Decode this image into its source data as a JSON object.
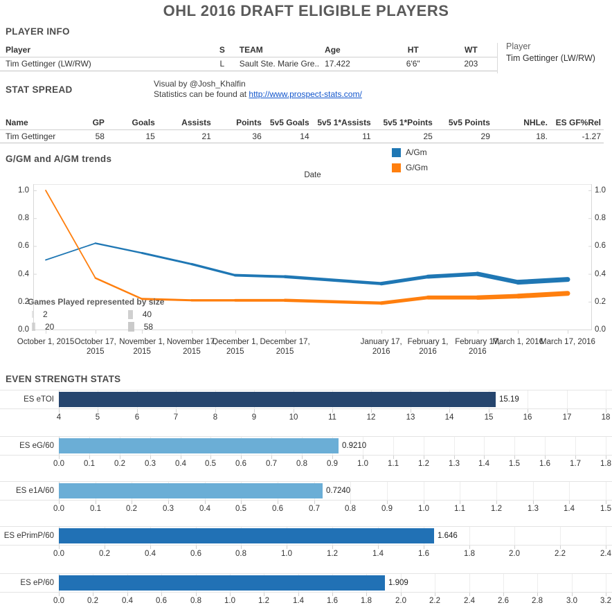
{
  "title": "OHL 2016 DRAFT ELIGIBLE PLAYERS",
  "player_info": {
    "heading": "PLAYER INFO",
    "columns": [
      "Player",
      "S",
      "TEAM",
      "Age",
      "HT",
      "WT"
    ],
    "row": [
      "Tim Gettinger (LW/RW)",
      "L",
      "Sault Ste. Marie Gre..",
      "17.422",
      "6'6\"",
      "203"
    ],
    "side_label": "Player",
    "side_value": "Tim Gettinger (LW/RW)"
  },
  "stat_spread": {
    "heading": "STAT SPREAD",
    "credit_line1": "Visual by @Josh_Khalfin",
    "credit_line2_prefix": "Statistics can be found at ",
    "credit_link": "http://www.prospect-stats.com/",
    "columns": [
      "Name",
      "GP",
      "Goals",
      "Assists",
      "Points",
      "5v5 Goals",
      "5v5 1*Assists",
      "5v5 1*Points",
      "5v5 Points",
      "NHLe.",
      "ES GF%Rel"
    ],
    "row": [
      "Tim Gettinger",
      "58",
      "15",
      "21",
      "36",
      "14",
      "11",
      "25",
      "29",
      "18.",
      "-1.27"
    ]
  },
  "trends": {
    "heading": "G/GM and A/GM trends",
    "legend": [
      {
        "label": "A/Gm",
        "color": "#1f77b4"
      },
      {
        "label": "G/Gm",
        "color": "#ff7f0e"
      }
    ]
  },
  "even_strength": {
    "heading": "EVEN STRENGTH STATS"
  },
  "chart_data": [
    {
      "type": "line",
      "title": "G/GM and A/GM trends",
      "xlabel": "Date",
      "ylabel": "",
      "ylim": [
        0.0,
        1.0
      ],
      "yticks": [
        0.0,
        0.2,
        0.4,
        0.6,
        0.8,
        1.0
      ],
      "grid": false,
      "legend_position": "top-right",
      "x": [
        "October 1, 2015",
        "October 17, 2015",
        "November 1, 2015",
        "November 17, 2015",
        "December 1, 2015",
        "December 17, 2015",
        "January 17, 2016",
        "February 1, 2016",
        "February 17, 2016",
        "March 1, 2016",
        "March 17, 2016"
      ],
      "x_day_offsets": [
        0,
        16,
        31,
        47,
        61,
        77,
        108,
        123,
        139,
        152,
        168
      ],
      "series": [
        {
          "name": "A/Gm",
          "color": "#1f77b4",
          "values": [
            0.5,
            0.62,
            0.55,
            0.47,
            0.39,
            0.38,
            0.33,
            0.38,
            0.4,
            0.34,
            0.36
          ]
        },
        {
          "name": "G/Gm",
          "color": "#ff7f0e",
          "values": [
            1.0,
            0.37,
            0.22,
            0.21,
            0.21,
            0.21,
            0.19,
            0.23,
            0.23,
            0.24,
            0.26
          ]
        }
      ],
      "size_encoding": {
        "sized_by": "Games Played",
        "per_point": [
          2,
          8,
          14,
          18,
          23,
          28,
          34,
          40,
          46,
          52,
          58
        ]
      },
      "size_legend": {
        "title": "Games Played represented by size",
        "items": [
          "2",
          "20",
          "40",
          "58"
        ]
      }
    },
    {
      "type": "bar",
      "label": "ES eTOI",
      "value": 15.19,
      "value_label": "15.19",
      "axis_min": 4,
      "axis_max": 18,
      "tick_step": 1,
      "color": "#26456e"
    },
    {
      "type": "bar",
      "label": "ES eG/60",
      "value": 0.921,
      "value_label": "0.9210",
      "axis_min": 0,
      "axis_max": 1.8,
      "tick_step": 0.1,
      "color": "#6baed6"
    },
    {
      "type": "bar",
      "label": "ES e1A/60",
      "value": 0.724,
      "value_label": "0.7240",
      "axis_min": 0,
      "axis_max": 1.5,
      "tick_step": 0.1,
      "color": "#6baed6"
    },
    {
      "type": "bar",
      "label": "ES ePrimP/60",
      "value": 1.646,
      "value_label": "1.646",
      "axis_min": 0,
      "axis_max": 2.4,
      "tick_step": 0.2,
      "color": "#2171b5"
    },
    {
      "type": "bar",
      "label": "ES eP/60",
      "value": 1.909,
      "value_label": "1.909",
      "axis_min": 0,
      "axis_max": 3.2,
      "tick_step": 0.2,
      "color": "#2171b5"
    }
  ]
}
